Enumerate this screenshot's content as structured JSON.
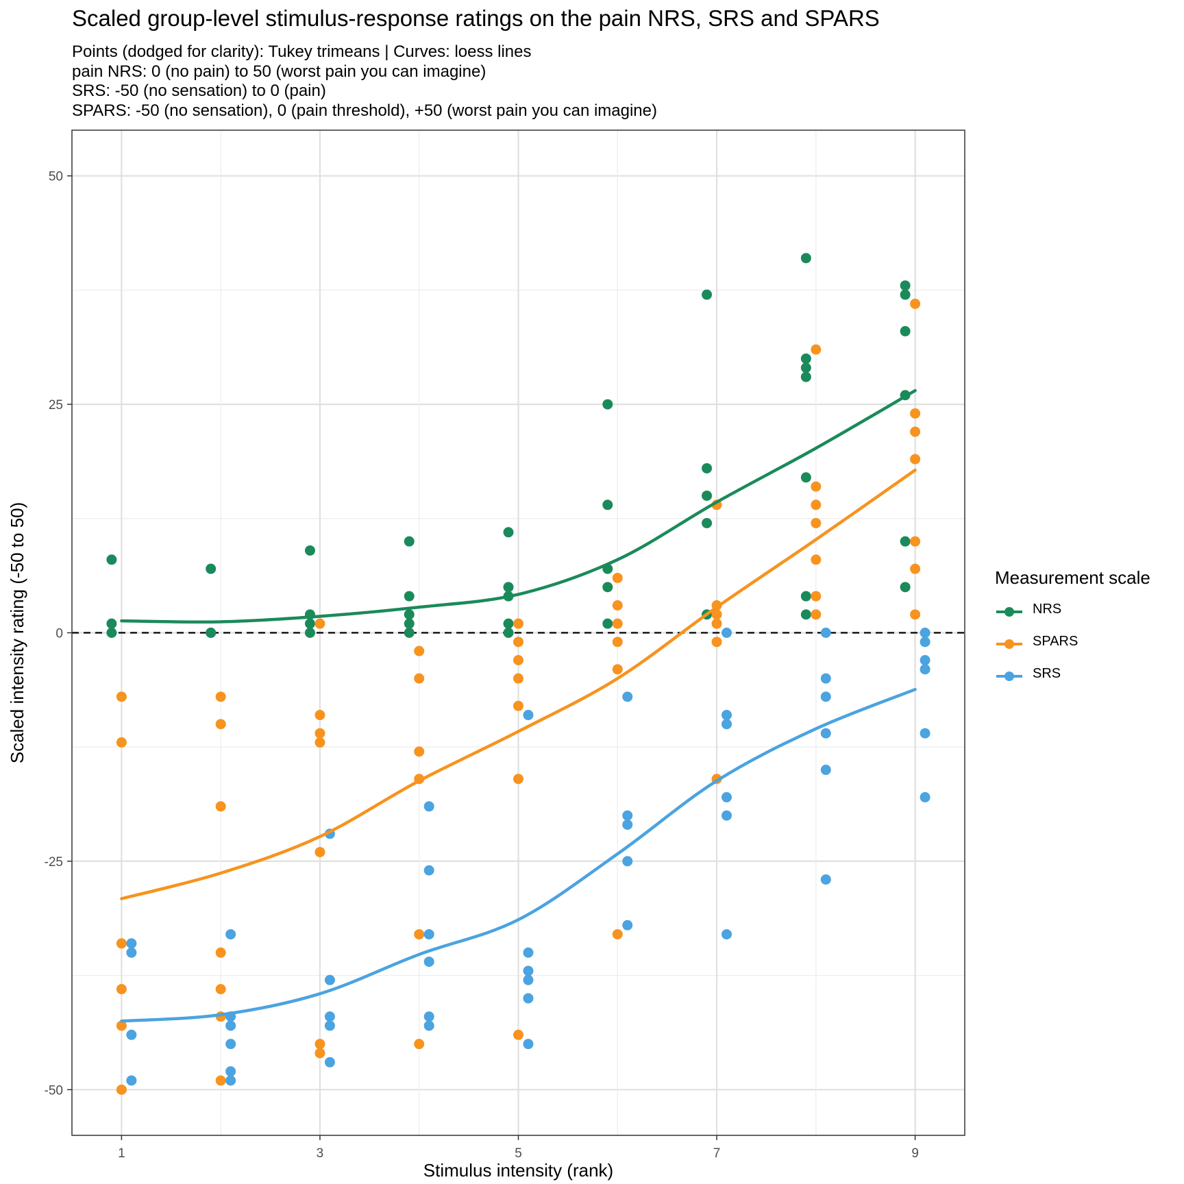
{
  "title": "Scaled group-level stimulus-response ratings on the pain NRS, SRS and SPARS",
  "subtitle": [
    "Points (dodged for clarity): Tukey trimeans | Curves: loess lines",
    "pain NRS: 0 (no pain) to 50 (worst pain you can imagine)",
    "SRS: -50 (no sensation) to 0 (pain)",
    "SPARS: -50 (no sensation), 0 (pain threshold), +50 (worst pain you can imagine)"
  ],
  "legend": {
    "title": "Measurement scale",
    "items": [
      {
        "label": "NRS",
        "color": "#1b8a5a"
      },
      {
        "label": "SPARS",
        "color": "#f7931e"
      },
      {
        "label": "SRS",
        "color": "#4ba3e0"
      }
    ]
  },
  "chart_data": {
    "type": "scatter",
    "xlabel": "Stimulus intensity (rank)",
    "ylabel": "Scaled intensity rating (-50 to 50)",
    "xlim": [
      0.5,
      9.5
    ],
    "ylim": [
      -55,
      55
    ],
    "x_ticks": [
      1,
      3,
      5,
      7,
      9
    ],
    "y_ticks": [
      -50,
      -25,
      0,
      25,
      50
    ],
    "grid": true,
    "reference_line": {
      "y": 0,
      "style": "dashed"
    },
    "legend_position": "right",
    "series": [
      {
        "name": "NRS",
        "color": "#1b8a5a",
        "points": [
          {
            "x": 1,
            "values": [
              8,
              1,
              0
            ]
          },
          {
            "x": 2,
            "values": [
              7,
              0,
              0
            ]
          },
          {
            "x": 3,
            "values": [
              9,
              2,
              1,
              0
            ]
          },
          {
            "x": 4,
            "values": [
              10,
              4,
              2,
              1,
              0
            ]
          },
          {
            "x": 5,
            "values": [
              11,
              5,
              4,
              1,
              0
            ]
          },
          {
            "x": 6,
            "values": [
              25,
              14,
              7,
              5,
              1
            ]
          },
          {
            "x": 7,
            "values": [
              37,
              18,
              15,
              12,
              2
            ]
          },
          {
            "x": 8,
            "values": [
              41,
              30,
              29,
              28,
              17,
              4,
              2
            ]
          },
          {
            "x": 9,
            "values": [
              38,
              37,
              33,
              26,
              10,
              5
            ]
          }
        ],
        "loess": [
          {
            "x": 1,
            "y": 1.3
          },
          {
            "x": 2,
            "y": 1.2
          },
          {
            "x": 3,
            "y": 1.8
          },
          {
            "x": 4,
            "y": 2.8
          },
          {
            "x": 5,
            "y": 4.2
          },
          {
            "x": 6,
            "y": 8.0
          },
          {
            "x": 7,
            "y": 14.3
          },
          {
            "x": 8,
            "y": 20.2
          },
          {
            "x": 9,
            "y": 26.5
          }
        ]
      },
      {
        "name": "SPARS",
        "color": "#f7931e",
        "points": [
          {
            "x": 1,
            "values": [
              -7,
              -12,
              -34,
              -39,
              -43,
              -50
            ]
          },
          {
            "x": 2,
            "values": [
              -7,
              -10,
              -19,
              -35,
              -39,
              -42,
              -49
            ]
          },
          {
            "x": 3,
            "values": [
              1,
              -9,
              -11,
              -12,
              -24,
              -45,
              -46
            ]
          },
          {
            "x": 4,
            "values": [
              -2,
              -5,
              -13,
              -16,
              -33,
              -45
            ]
          },
          {
            "x": 5,
            "values": [
              1,
              -1,
              -3,
              -5,
              -8,
              -16,
              -44
            ]
          },
          {
            "x": 6,
            "values": [
              6,
              3,
              1,
              -1,
              -4,
              -33
            ]
          },
          {
            "x": 7,
            "values": [
              14,
              3,
              2,
              1,
              -1,
              -16
            ]
          },
          {
            "x": 8,
            "values": [
              31,
              16,
              14,
              12,
              8,
              4,
              2
            ]
          },
          {
            "x": 9,
            "values": [
              36,
              24,
              22,
              19,
              10,
              7,
              2
            ]
          }
        ],
        "loess": [
          {
            "x": 1,
            "y": -29.1
          },
          {
            "x": 2,
            "y": -26.3
          },
          {
            "x": 3,
            "y": -22.3
          },
          {
            "x": 4,
            "y": -16.2
          },
          {
            "x": 5,
            "y": -10.8
          },
          {
            "x": 6,
            "y": -5.0
          },
          {
            "x": 7,
            "y": 2.8
          },
          {
            "x": 8,
            "y": 10.2
          },
          {
            "x": 9,
            "y": 17.8
          }
        ]
      },
      {
        "name": "SRS",
        "color": "#4ba3e0",
        "points": [
          {
            "x": 1,
            "values": [
              -34,
              -35,
              -44,
              -49
            ]
          },
          {
            "x": 2,
            "values": [
              -33,
              -42,
              -43,
              -45,
              -48,
              -49
            ]
          },
          {
            "x": 3,
            "values": [
              -22,
              -38,
              -42,
              -43,
              -47
            ]
          },
          {
            "x": 4,
            "values": [
              -19,
              -26,
              -33,
              -36,
              -42,
              -43
            ]
          },
          {
            "x": 5,
            "values": [
              -9,
              -35,
              -37,
              -38,
              -40,
              -45
            ]
          },
          {
            "x": 6,
            "values": [
              -7,
              -20,
              -21,
              -25,
              -32
            ]
          },
          {
            "x": 7,
            "values": [
              0,
              -9,
              -10,
              -18,
              -20,
              -33
            ]
          },
          {
            "x": 8,
            "values": [
              0,
              -5,
              -7,
              -11,
              -15,
              -27
            ]
          },
          {
            "x": 9,
            "values": [
              0,
              -1,
              -3,
              -4,
              -11,
              -18
            ]
          }
        ],
        "loess": [
          {
            "x": 1,
            "y": -42.5
          },
          {
            "x": 2,
            "y": -41.8
          },
          {
            "x": 3,
            "y": -39.5
          },
          {
            "x": 4,
            "y": -35.2
          },
          {
            "x": 5,
            "y": -31.4
          },
          {
            "x": 6,
            "y": -24.2
          },
          {
            "x": 7,
            "y": -16.2
          },
          {
            "x": 8,
            "y": -10.5
          },
          {
            "x": 9,
            "y": -6.2
          }
        ]
      }
    ]
  }
}
